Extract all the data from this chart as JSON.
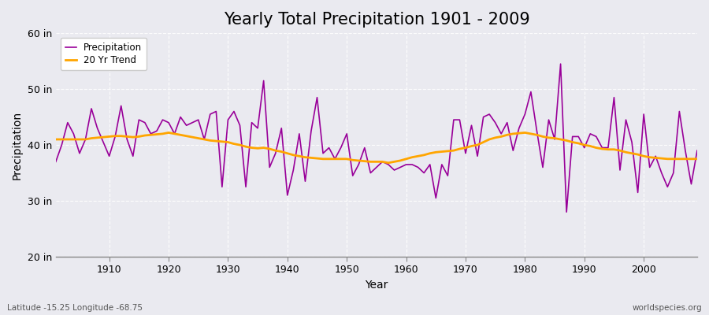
{
  "title": "Yearly Total Precipitation 1901 - 2009",
  "xlabel": "Year",
  "ylabel": "Precipitation",
  "bottom_left_label": "Latitude -15.25 Longitude -68.75",
  "bottom_right_label": "worldspecies.org",
  "years": [
    1901,
    1902,
    1903,
    1904,
    1905,
    1906,
    1907,
    1908,
    1909,
    1910,
    1911,
    1912,
    1913,
    1914,
    1915,
    1916,
    1917,
    1918,
    1919,
    1920,
    1921,
    1922,
    1923,
    1924,
    1925,
    1926,
    1927,
    1928,
    1929,
    1930,
    1931,
    1932,
    1933,
    1934,
    1935,
    1936,
    1937,
    1938,
    1939,
    1940,
    1941,
    1942,
    1943,
    1944,
    1945,
    1946,
    1947,
    1948,
    1949,
    1950,
    1951,
    1952,
    1953,
    1954,
    1955,
    1956,
    1957,
    1958,
    1959,
    1960,
    1961,
    1962,
    1963,
    1964,
    1965,
    1966,
    1967,
    1968,
    1969,
    1970,
    1971,
    1972,
    1973,
    1974,
    1975,
    1976,
    1977,
    1978,
    1979,
    1980,
    1981,
    1982,
    1983,
    1984,
    1985,
    1986,
    1987,
    1988,
    1989,
    1990,
    1991,
    1992,
    1993,
    1994,
    1995,
    1996,
    1997,
    1998,
    1999,
    2000,
    2001,
    2002,
    2003,
    2004,
    2005,
    2006,
    2007,
    2008,
    2009
  ],
  "precip": [
    37.0,
    40.0,
    44.0,
    42.0,
    38.5,
    41.0,
    46.5,
    43.0,
    40.5,
    38.0,
    41.5,
    47.0,
    41.0,
    38.0,
    44.5,
    44.0,
    42.0,
    42.5,
    44.5,
    44.0,
    42.0,
    45.0,
    43.5,
    44.0,
    44.5,
    41.0,
    45.5,
    46.0,
    32.5,
    44.5,
    46.0,
    43.5,
    32.5,
    44.0,
    43.0,
    51.5,
    36.0,
    38.5,
    43.0,
    31.0,
    35.5,
    42.0,
    33.5,
    42.5,
    48.5,
    38.5,
    39.5,
    37.5,
    39.5,
    42.0,
    34.5,
    36.5,
    39.5,
    35.0,
    36.0,
    37.0,
    36.5,
    35.5,
    36.0,
    36.5,
    36.5,
    36.0,
    35.0,
    36.5,
    30.5,
    36.5,
    34.5,
    44.5,
    44.5,
    38.5,
    43.5,
    38.0,
    45.0,
    45.5,
    44.0,
    42.0,
    44.0,
    39.0,
    43.0,
    45.5,
    49.5,
    42.5,
    36.0,
    44.5,
    41.0,
    54.5,
    28.0,
    41.5,
    41.5,
    39.5,
    42.0,
    41.5,
    39.5,
    39.5,
    48.5,
    35.5,
    44.5,
    40.5,
    31.5,
    45.5,
    36.0,
    38.0,
    35.0,
    32.5,
    35.0,
    46.0,
    39.0,
    33.0,
    39.0
  ],
  "trend": [
    41.0,
    41.0,
    41.0,
    41.0,
    41.0,
    41.0,
    41.2,
    41.3,
    41.4,
    41.5,
    41.6,
    41.6,
    41.5,
    41.4,
    41.5,
    41.7,
    41.8,
    41.9,
    42.0,
    42.2,
    42.0,
    41.8,
    41.6,
    41.4,
    41.2,
    41.0,
    40.8,
    40.7,
    40.6,
    40.5,
    40.2,
    40.0,
    39.7,
    39.5,
    39.4,
    39.5,
    39.3,
    39.0,
    38.8,
    38.5,
    38.2,
    38.0,
    37.8,
    37.7,
    37.6,
    37.5,
    37.5,
    37.5,
    37.5,
    37.5,
    37.3,
    37.2,
    37.1,
    37.0,
    37.0,
    37.0,
    36.8,
    37.0,
    37.2,
    37.5,
    37.8,
    38.0,
    38.2,
    38.5,
    38.7,
    38.8,
    38.9,
    39.0,
    39.3,
    39.5,
    39.8,
    40.0,
    40.5,
    41.0,
    41.3,
    41.5,
    41.8,
    42.0,
    42.1,
    42.2,
    42.0,
    41.8,
    41.5,
    41.3,
    41.2,
    41.0,
    40.8,
    40.5,
    40.3,
    40.0,
    39.8,
    39.5,
    39.3,
    39.2,
    39.2,
    39.0,
    38.7,
    38.5,
    38.3,
    38.0,
    37.8,
    37.7,
    37.6,
    37.5,
    37.5,
    37.5,
    37.5,
    37.5,
    37.5
  ],
  "precip_color": "#990099",
  "trend_color": "#FFA500",
  "bg_color": "#EAEAF0",
  "plot_bg_color": "#EAEAF0",
  "ylim": [
    20,
    60
  ],
  "yticks": [
    20,
    30,
    40,
    50,
    60
  ],
  "ytick_labels": [
    "20 in",
    "30 in",
    "40 in",
    "50 in",
    "60 in"
  ],
  "xtick_years": [
    1910,
    1920,
    1930,
    1940,
    1950,
    1960,
    1970,
    1980,
    1990,
    2000
  ],
  "grid_color": "#FFFFFF",
  "title_fontsize": 15,
  "axis_label_fontsize": 10,
  "tick_fontsize": 9
}
